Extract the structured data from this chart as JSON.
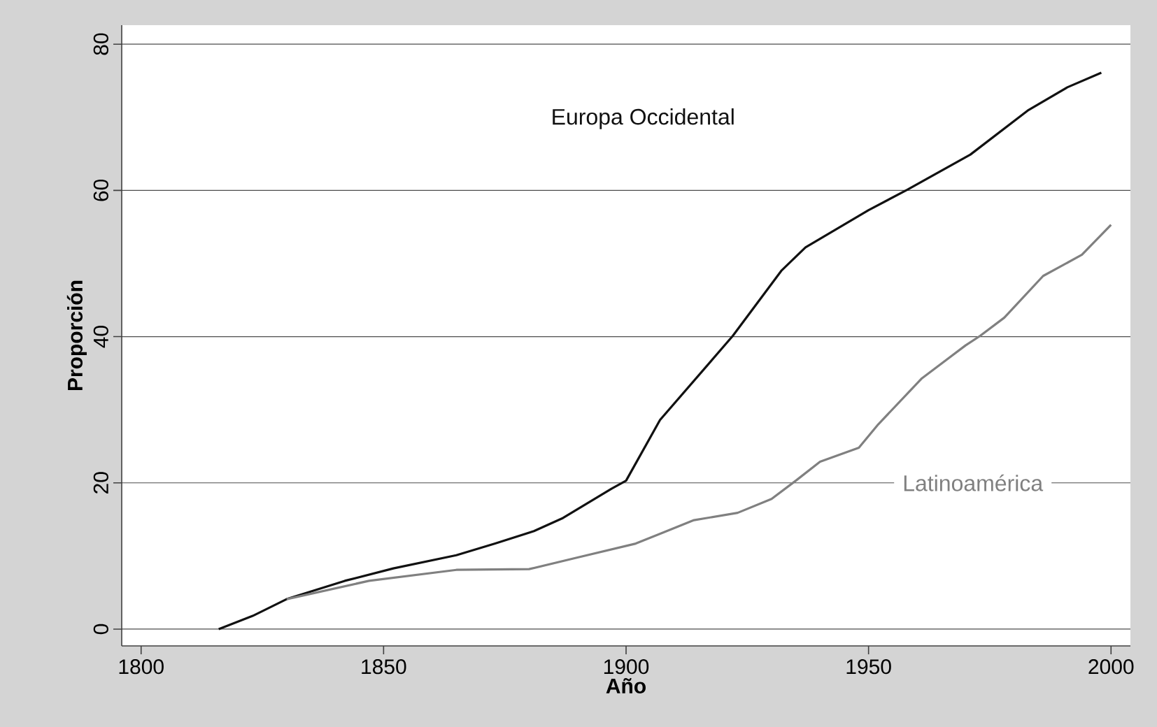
{
  "chart_data": {
    "type": "line",
    "xlabel": "Año",
    "ylabel": "Proporción",
    "xlim": [
      1796,
      2004
    ],
    "ylim": [
      -2.3,
      82.6
    ],
    "xticks": [
      1800,
      1850,
      1900,
      1950,
      2000
    ],
    "yticks": [
      0,
      20,
      40,
      60,
      80
    ],
    "grid": "y",
    "legend": false,
    "marker": "none",
    "line_style": "solid",
    "series": [
      {
        "name": "Europa Occidental",
        "color": "#111111",
        "x": [
          1816,
          1823,
          1830,
          1842,
          1852,
          1865,
          1873,
          1881,
          1887,
          1897,
          1900,
          1907,
          1922,
          1932,
          1937,
          1950,
          1958,
          1971,
          1983,
          1991,
          1998
        ],
        "values": [
          0,
          1.8,
          4.1,
          6.6,
          8.3,
          10.1,
          11.7,
          13.4,
          15.2,
          19.2,
          20.3,
          28.6,
          40.1,
          49,
          52.2,
          57.3,
          60.1,
          64.9,
          71,
          74.1,
          76.1
        ]
      },
      {
        "name": "Latinoamérica",
        "color": "#808080",
        "x": [
          1830,
          1847,
          1865,
          1880,
          1890,
          1902,
          1914,
          1923,
          1930,
          1935,
          1940,
          1948,
          1952,
          1961,
          1970,
          1973,
          1978,
          1986,
          1994,
          2000
        ],
        "values": [
          4.1,
          6.6,
          8.1,
          8.2,
          9.8,
          11.7,
          14.9,
          15.9,
          17.8,
          20.3,
          22.9,
          24.8,
          28,
          34.3,
          38.8,
          40.1,
          42.6,
          48.3,
          51.2,
          55.3
        ]
      }
    ]
  }
}
